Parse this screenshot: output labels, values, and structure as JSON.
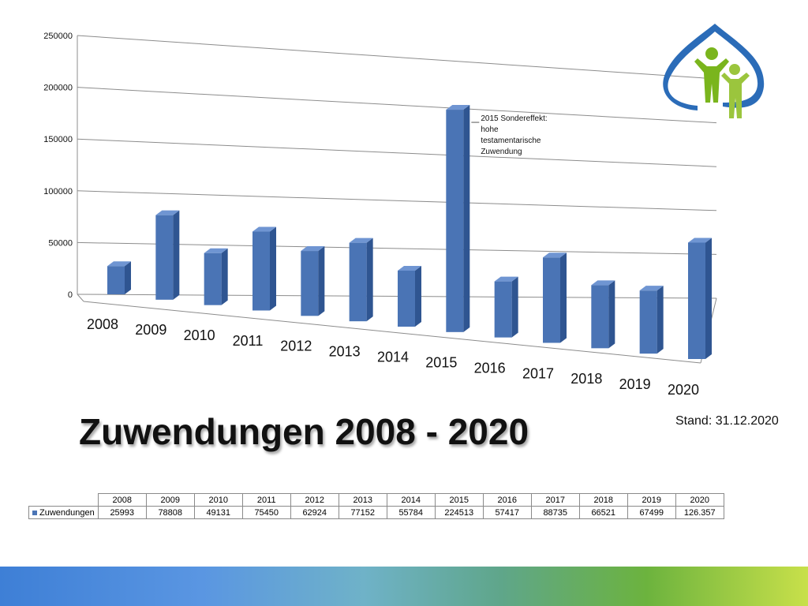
{
  "title": "Zuwendungen 2008 - 2020",
  "stand": "Stand: 31.12.2020",
  "colors": {
    "bar": "#4a74b5",
    "bar_side": "#2f5591",
    "bar_top": "#6f95d2",
    "logo_blue": "#2b6cb8",
    "logo_green": "#7ab51d"
  },
  "logo": {
    "icon": "two-people-in-leaf-logo"
  },
  "chart_data": {
    "type": "bar",
    "style": "3d-column",
    "categories": [
      "2008",
      "2009",
      "2010",
      "2011",
      "2012",
      "2013",
      "2014",
      "2015",
      "2016",
      "2017",
      "2018",
      "2019",
      "2020"
    ],
    "series": [
      {
        "name": "Zuwendungen",
        "values": [
          25993,
          78808,
          49131,
          75450,
          62924,
          77152,
          55784,
          224513,
          57417,
          88735,
          66521,
          67499,
          126357
        ]
      }
    ],
    "ylim": [
      0,
      250000
    ],
    "yticks": [
      "250000",
      "200000",
      "150000",
      "100000",
      "50000",
      "0"
    ],
    "grid": true,
    "annotation": {
      "category": "2015",
      "text": [
        "2015 Sondereffekt:",
        "hohe",
        "testamentarische",
        "Zuwendung"
      ]
    }
  },
  "table": {
    "row_label": "Zuwendungen",
    "years": [
      "2008",
      "2009",
      "2010",
      "2011",
      "2012",
      "2013",
      "2014",
      "2015",
      "2016",
      "2017",
      "2018",
      "2019",
      "2020"
    ],
    "values": [
      "25993",
      "78808",
      "49131",
      "75450",
      "62924",
      "77152",
      "55784",
      "224513",
      "57417",
      "88735",
      "66521",
      "67499",
      "126.357"
    ]
  }
}
